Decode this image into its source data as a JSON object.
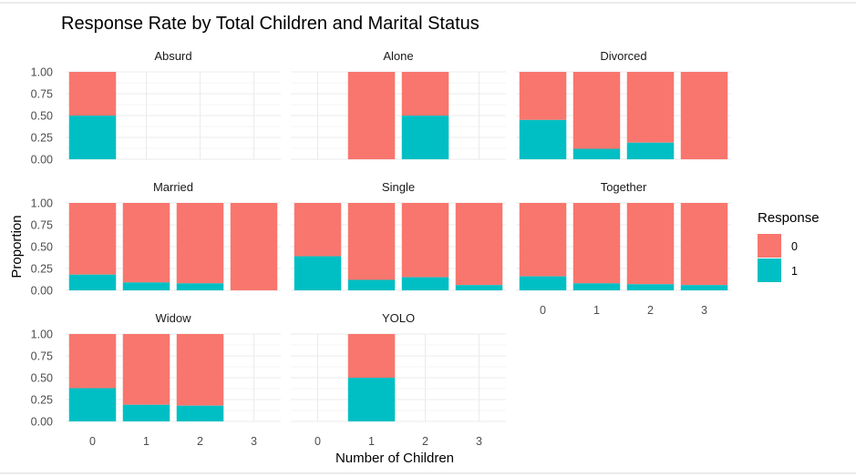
{
  "chart_data": {
    "type": "bar",
    "stacked": true,
    "facet_layout": "wrap-3-columns",
    "title": "Response Rate by Total Children and Marital Status",
    "xlabel": "Number of Children",
    "ylabel": "Proportion",
    "ylim": [
      0,
      1
    ],
    "y_ticks": [
      "0.00",
      "0.25",
      "0.50",
      "0.75",
      "1.00"
    ],
    "x_categories": [
      "0",
      "1",
      "2",
      "3"
    ],
    "grid": true,
    "legend": {
      "title": "Response",
      "placement": "right",
      "entries": [
        {
          "label": "0",
          "color": "#F8766D"
        },
        {
          "label": "1",
          "color": "#00BFC4"
        }
      ]
    },
    "facets": [
      {
        "name": "Absurd",
        "response_1": [
          0.5,
          null,
          null,
          null
        ]
      },
      {
        "name": "Alone",
        "response_1": [
          null,
          0.0,
          0.5,
          null
        ]
      },
      {
        "name": "Divorced",
        "response_1": [
          0.45,
          0.12,
          0.19,
          0.0
        ]
      },
      {
        "name": "Married",
        "response_1": [
          0.18,
          0.09,
          0.08,
          0.0
        ]
      },
      {
        "name": "Single",
        "response_1": [
          0.39,
          0.12,
          0.15,
          0.06
        ]
      },
      {
        "name": "Together",
        "response_1": [
          0.16,
          0.08,
          0.07,
          0.06
        ]
      },
      {
        "name": "Widow",
        "response_1": [
          0.38,
          0.19,
          0.18,
          null
        ]
      },
      {
        "name": "YOLO",
        "response_1": [
          null,
          0.5,
          null,
          null
        ]
      }
    ]
  }
}
